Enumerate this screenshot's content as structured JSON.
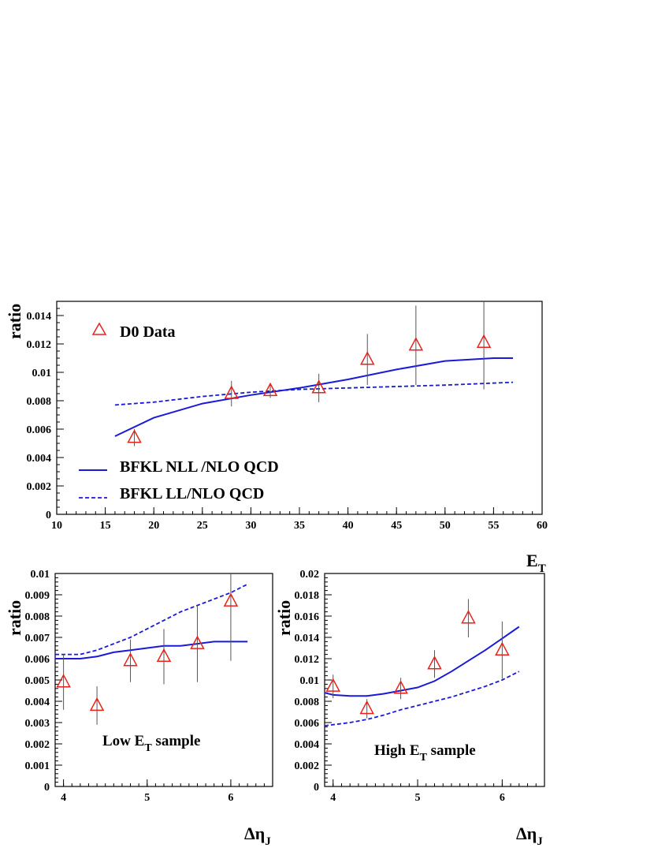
{
  "chart_data": [
    {
      "type": "scatter",
      "xlabel_main": "E",
      "xlabel_sub": "T",
      "ylabel": "ratio",
      "xlim": [
        10,
        60
      ],
      "ylim": [
        0,
        0.015
      ],
      "xticks": [
        "10",
        "15",
        "20",
        "25",
        "30",
        "35",
        "40",
        "45",
        "50",
        "55",
        "60"
      ],
      "yticks": [
        "0",
        "0.002",
        "0.004",
        "0.006",
        "0.008",
        "0.01",
        "0.012",
        "0.014"
      ],
      "grid": false,
      "legend_placement": "left",
      "legend": {
        "data": "D0 Data",
        "nll": "BFKL NLL /NLO QCD",
        "ll": "BFKL LL/NLO QCD"
      },
      "data": {
        "x": [
          18,
          28,
          32,
          37,
          42,
          47,
          54
        ],
        "y": [
          0.0054,
          0.0085,
          0.0087,
          0.0089,
          0.0109,
          0.0119,
          0.0121
        ],
        "err": [
          0.0006,
          0.0009,
          0.0005,
          0.001,
          0.0018,
          0.0028,
          0.0033
        ]
      },
      "nll_curve": {
        "x": [
          16,
          20,
          25,
          30,
          35,
          40,
          45,
          50,
          55,
          57
        ],
        "y": [
          0.0055,
          0.0068,
          0.0078,
          0.0084,
          0.0089,
          0.0095,
          0.0102,
          0.0108,
          0.011,
          0.011
        ]
      },
      "ll_curve": {
        "x": [
          16,
          20,
          25,
          30,
          35,
          40,
          45,
          50,
          57
        ],
        "y": [
          0.0077,
          0.0079,
          0.0083,
          0.0086,
          0.0088,
          0.0089,
          0.009,
          0.0091,
          0.0093
        ]
      }
    },
    {
      "type": "scatter",
      "xlabel": "Δη",
      "xlabel_sub": "J",
      "ylabel": "ratio",
      "xlim": [
        3.9,
        6.5
      ],
      "ylim": [
        0,
        0.01
      ],
      "xticks": [
        "4",
        "5",
        "6"
      ],
      "yticks": [
        "0",
        "0.001",
        "0.002",
        "0.003",
        "0.004",
        "0.005",
        "0.006",
        "0.007",
        "0.008",
        "0.009",
        "0.01"
      ],
      "annotation_main": "Low E",
      "annotation_sub": "T",
      "annotation_tail": " sample",
      "data": {
        "x": [
          4.0,
          4.4,
          4.8,
          5.2,
          5.6,
          6.0
        ],
        "y": [
          0.0049,
          0.0038,
          0.0059,
          0.0061,
          0.0067,
          0.0087
        ],
        "err": [
          0.0013,
          0.0009,
          0.001,
          0.0013,
          0.0018,
          0.0028
        ]
      },
      "nll_curve": {
        "x": [
          3.9,
          4.0,
          4.2,
          4.4,
          4.6,
          4.8,
          5.0,
          5.2,
          5.4,
          5.6,
          5.8,
          6.0,
          6.2
        ],
        "y": [
          0.006,
          0.006,
          0.006,
          0.0061,
          0.0063,
          0.0064,
          0.0065,
          0.0066,
          0.0066,
          0.0067,
          0.0068,
          0.0068,
          0.0068
        ]
      },
      "ll_curve": {
        "x": [
          3.9,
          4.0,
          4.2,
          4.4,
          4.6,
          4.8,
          5.0,
          5.2,
          5.4,
          5.6,
          5.8,
          6.0,
          6.2
        ],
        "y": [
          0.0062,
          0.0062,
          0.0062,
          0.0064,
          0.0067,
          0.007,
          0.0074,
          0.0078,
          0.0082,
          0.0085,
          0.0088,
          0.0091,
          0.0095
        ]
      }
    },
    {
      "type": "scatter",
      "xlabel": "Δη",
      "xlabel_sub": "J",
      "ylabel": "ratio",
      "xlim": [
        3.9,
        6.5
      ],
      "ylim": [
        0,
        0.02
      ],
      "xticks": [
        "4",
        "5",
        "6"
      ],
      "yticks": [
        "0",
        "0.002",
        "0.004",
        "0.006",
        "0.008",
        "0.01",
        "0.012",
        "0.014",
        "0.016",
        "0.018",
        "0.02"
      ],
      "annotation_main": "High E",
      "annotation_sub": "T",
      "annotation_tail": " sample",
      "data": {
        "x": [
          4.0,
          4.4,
          4.8,
          5.2,
          5.6,
          6.0
        ],
        "y": [
          0.0094,
          0.0073,
          0.0092,
          0.0115,
          0.0158,
          0.0128
        ],
        "err": [
          0.0011,
          0.0009,
          0.001,
          0.0013,
          0.0018,
          0.0027
        ]
      },
      "nll_curve": {
        "x": [
          3.9,
          4.0,
          4.2,
          4.4,
          4.6,
          4.8,
          5.0,
          5.2,
          5.4,
          5.6,
          5.8,
          6.0,
          6.2
        ],
        "y": [
          0.0088,
          0.0086,
          0.0085,
          0.0085,
          0.0087,
          0.009,
          0.0093,
          0.0099,
          0.0108,
          0.0118,
          0.0128,
          0.0139,
          0.015
        ]
      },
      "ll_curve": {
        "x": [
          3.9,
          4.0,
          4.2,
          4.4,
          4.6,
          4.8,
          5.0,
          5.2,
          5.4,
          5.6,
          5.8,
          6.0,
          6.2
        ],
        "y": [
          0.0057,
          0.0058,
          0.006,
          0.0063,
          0.0067,
          0.0072,
          0.0076,
          0.008,
          0.0084,
          0.0089,
          0.0094,
          0.01,
          0.0108
        ]
      }
    }
  ]
}
